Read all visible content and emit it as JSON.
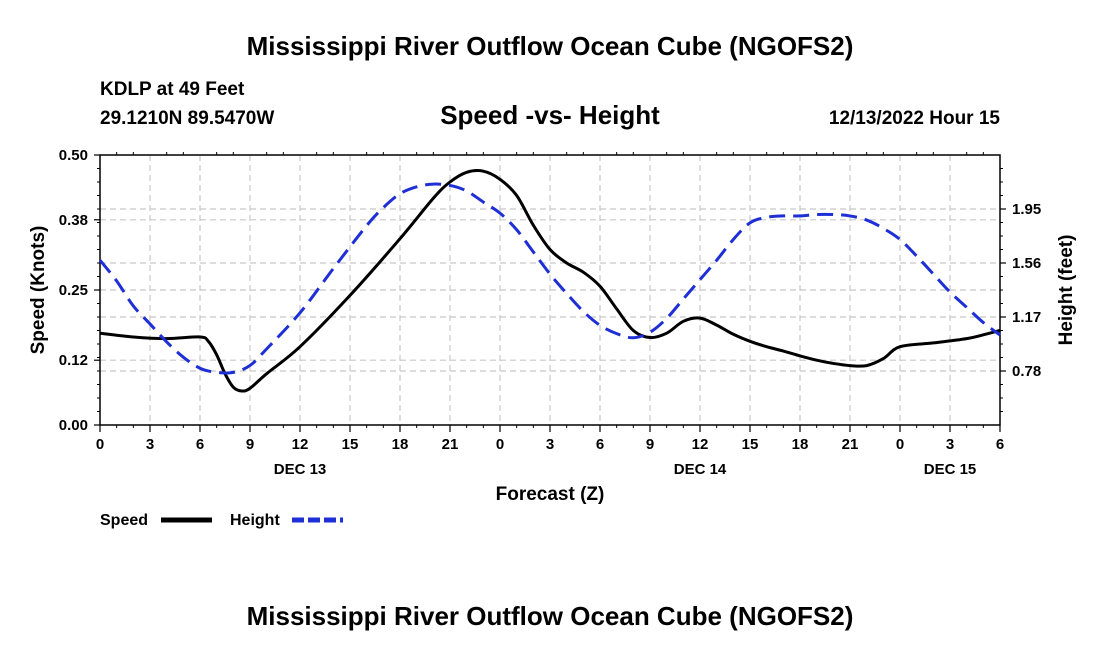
{
  "chart_data": {
    "type": "line",
    "title": "Mississippi River Outflow Ocean Cube (NGOFS2)",
    "footer_title": "Mississippi River Outflow Ocean Cube (NGOFS2)",
    "station": "KDLP at 49 Feet",
    "coords": "29.1210N  89.5470W",
    "subtitle": "Speed -vs- Height",
    "timestamp": "12/13/2022 Hour 15",
    "xlabel": "Forecast (Z)",
    "ylabel_left": "Speed (Knots)",
    "ylabel_right": "Height (feet)",
    "x_range_hours": [
      0,
      54
    ],
    "x_ticks": [
      {
        "h": 0,
        "label": "0"
      },
      {
        "h": 3,
        "label": "3"
      },
      {
        "h": 6,
        "label": "6"
      },
      {
        "h": 9,
        "label": "9"
      },
      {
        "h": 12,
        "label": "12"
      },
      {
        "h": 15,
        "label": "15"
      },
      {
        "h": 18,
        "label": "18"
      },
      {
        "h": 21,
        "label": "21"
      },
      {
        "h": 24,
        "label": "0"
      },
      {
        "h": 27,
        "label": "3"
      },
      {
        "h": 30,
        "label": "6"
      },
      {
        "h": 33,
        "label": "9"
      },
      {
        "h": 36,
        "label": "12"
      },
      {
        "h": 39,
        "label": "15"
      },
      {
        "h": 42,
        "label": "18"
      },
      {
        "h": 45,
        "label": "21"
      },
      {
        "h": 48,
        "label": "0"
      },
      {
        "h": 51,
        "label": "3"
      },
      {
        "h": 54,
        "label": "6"
      }
    ],
    "day_labels": [
      {
        "h": 12,
        "label": "DEC 13"
      },
      {
        "h": 36,
        "label": "DEC 14"
      },
      {
        "h": 51,
        "label": "DEC 15"
      }
    ],
    "left_axis": {
      "ylim": [
        0,
        0.5
      ],
      "ticks": [
        0.0,
        0.12,
        0.25,
        0.38,
        0.5
      ],
      "tick_labels": [
        "0.00",
        "0.12",
        "0.25",
        "0.38",
        "0.50"
      ]
    },
    "right_axis": {
      "ylim": [
        0.39,
        2.34
      ],
      "ticks": [
        0.78,
        1.17,
        1.56,
        1.95
      ],
      "tick_labels": [
        "0.78",
        "1.17",
        "1.56",
        "1.95"
      ]
    },
    "grid": true,
    "legend_position": "bottom-left",
    "series": [
      {
        "name": "Speed",
        "axis": "left",
        "color": "#000000",
        "style": "solid",
        "x": [
          0,
          2,
          4,
          6,
          6.5,
          7,
          7.5,
          8,
          8.5,
          9,
          10,
          12,
          15,
          18,
          20,
          21,
          22,
          23,
          24,
          25,
          26,
          27,
          28,
          29,
          30,
          31,
          32,
          33,
          34,
          35,
          36,
          37,
          38,
          39,
          40,
          41,
          42,
          43,
          44,
          45,
          46,
          47,
          48,
          50,
          52,
          53,
          54
        ],
        "values": [
          0.17,
          0.163,
          0.16,
          0.163,
          0.155,
          0.13,
          0.095,
          0.07,
          0.063,
          0.068,
          0.095,
          0.145,
          0.24,
          0.345,
          0.42,
          0.45,
          0.468,
          0.47,
          0.455,
          0.425,
          0.37,
          0.325,
          0.3,
          0.283,
          0.257,
          0.215,
          0.175,
          0.162,
          0.17,
          0.192,
          0.198,
          0.185,
          0.168,
          0.155,
          0.145,
          0.137,
          0.128,
          0.12,
          0.114,
          0.11,
          0.11,
          0.123,
          0.145,
          0.152,
          0.16,
          0.167,
          0.175
        ]
      },
      {
        "name": "Height",
        "axis": "right",
        "color": "#1f2fd6",
        "style": "dashed",
        "x": [
          0,
          1,
          2,
          3,
          4,
          5,
          6,
          7,
          8,
          9,
          10,
          12,
          14,
          16,
          17,
          18,
          19,
          20,
          21,
          22,
          23,
          24,
          25,
          26,
          27,
          28,
          29,
          30,
          31,
          32,
          33,
          34,
          35,
          36,
          37,
          38,
          39,
          40,
          41,
          42,
          43,
          44,
          45,
          46,
          47,
          48,
          49,
          50,
          51,
          52,
          53,
          54
        ],
        "values": [
          1.58,
          1.43,
          1.25,
          1.12,
          0.99,
          0.88,
          0.8,
          0.77,
          0.77,
          0.82,
          0.94,
          1.2,
          1.52,
          1.83,
          1.96,
          2.06,
          2.11,
          2.13,
          2.12,
          2.08,
          2.0,
          1.92,
          1.8,
          1.64,
          1.48,
          1.34,
          1.21,
          1.11,
          1.05,
          1.02,
          1.06,
          1.16,
          1.3,
          1.44,
          1.58,
          1.73,
          1.85,
          1.89,
          1.9,
          1.9,
          1.91,
          1.91,
          1.9,
          1.87,
          1.81,
          1.73,
          1.61,
          1.48,
          1.35,
          1.24,
          1.13,
          1.04
        ]
      }
    ]
  },
  "legend": {
    "speed_label": "Speed",
    "height_label": "Height"
  }
}
